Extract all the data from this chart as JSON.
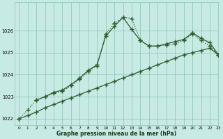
{
  "xlabel": "Graphe pression niveau de la mer (hPa)",
  "background_color": "#c8eae4",
  "grid_color": "#88c4b0",
  "line_color": "#2d5a2d",
  "xlim": [
    -0.5,
    23
  ],
  "ylim": [
    1021.7,
    1027.3
  ],
  "yticks": [
    1022,
    1023,
    1024,
    1025,
    1026
  ],
  "xticks": [
    0,
    1,
    2,
    3,
    4,
    5,
    6,
    7,
    8,
    9,
    10,
    11,
    12,
    13,
    14,
    15,
    16,
    17,
    18,
    19,
    20,
    21,
    22,
    23
  ],
  "series1_x": [
    0,
    1,
    2,
    3,
    4,
    5,
    6,
    7,
    8,
    9,
    10,
    11,
    12,
    13,
    14,
    15,
    16,
    17,
    18,
    19,
    20,
    21,
    22,
    23
  ],
  "series1_y": [
    1022.0,
    1022.15,
    1022.3,
    1022.5,
    1022.65,
    1022.8,
    1022.95,
    1023.1,
    1023.25,
    1023.4,
    1023.55,
    1023.7,
    1023.85,
    1024.0,
    1024.15,
    1024.3,
    1024.45,
    1024.6,
    1024.75,
    1024.9,
    1025.0,
    1025.1,
    1025.2,
    1024.9
  ],
  "series2_x": [
    0,
    1,
    2,
    3,
    4,
    5,
    6,
    7,
    8,
    9,
    10,
    11,
    12,
    13,
    14,
    15,
    16,
    17,
    18,
    19,
    20,
    21,
    22,
    23
  ],
  "series2_y": [
    1022.0,
    1022.4,
    1022.85,
    1023.0,
    1023.15,
    1023.25,
    1023.5,
    1023.8,
    1024.15,
    1024.4,
    1025.85,
    1026.35,
    1026.6,
    1026.55,
    1025.55,
    1025.3,
    1025.3,
    1025.35,
    1025.4,
    1025.55,
    1025.85,
    1025.55,
    1025.3,
    1024.9
  ],
  "series3_x": [
    2,
    3,
    4,
    5,
    6,
    7,
    8,
    9,
    10,
    11,
    12,
    13,
    14,
    15,
    16,
    17,
    18,
    19,
    20,
    21,
    22,
    23
  ],
  "series3_y": [
    1022.85,
    1023.0,
    1023.2,
    1023.3,
    1023.55,
    1023.85,
    1024.2,
    1024.45,
    1025.75,
    1026.2,
    1026.6,
    1026.05,
    1025.55,
    1025.3,
    1025.3,
    1025.4,
    1025.5,
    1025.6,
    1025.9,
    1025.65,
    1025.45,
    1024.9
  ]
}
